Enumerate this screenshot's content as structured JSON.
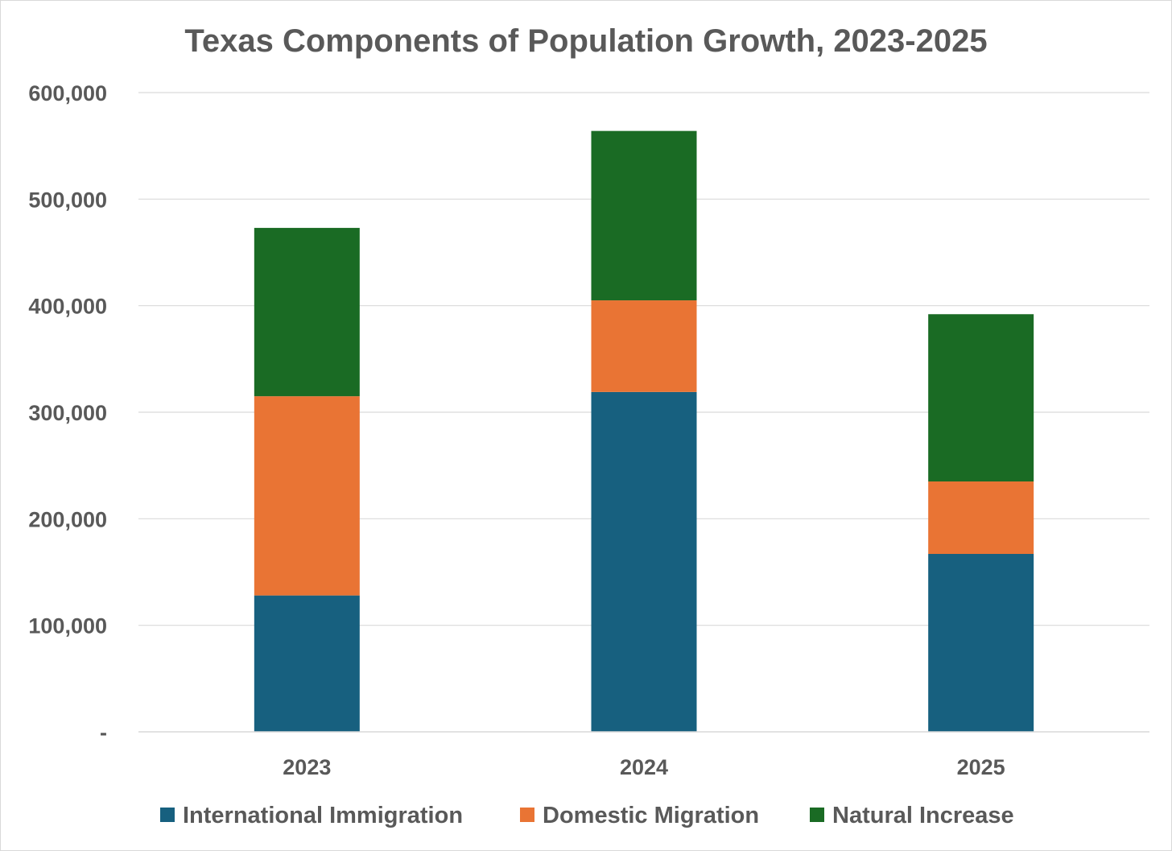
{
  "chart_data": {
    "type": "bar",
    "stacked": true,
    "title": "Texas Components of Population Growth, 2023-2025",
    "categories": [
      "2023",
      "2024",
      "2025"
    ],
    "series": [
      {
        "name": "International Immigration",
        "color": "#17607f",
        "values": [
          128000,
          319000,
          167000
        ]
      },
      {
        "name": "Domestic Migration",
        "color": "#e97434",
        "values": [
          187000,
          86000,
          68000
        ]
      },
      {
        "name": "Natural Increase",
        "color": "#1a6b24",
        "values": [
          158000,
          159000,
          157000
        ]
      }
    ],
    "ylim": [
      0,
      600000
    ],
    "yticks": [
      {
        "value": 0,
        "label": "-"
      },
      {
        "value": 100000,
        "label": "100,000"
      },
      {
        "value": 200000,
        "label": "200,000"
      },
      {
        "value": 300000,
        "label": "300,000"
      },
      {
        "value": 400000,
        "label": "400,000"
      },
      {
        "value": 500000,
        "label": "500,000"
      },
      {
        "value": 600000,
        "label": "600,000"
      }
    ],
    "xlabel": "",
    "ylabel": "",
    "grid": true,
    "legend_position": "bottom"
  }
}
